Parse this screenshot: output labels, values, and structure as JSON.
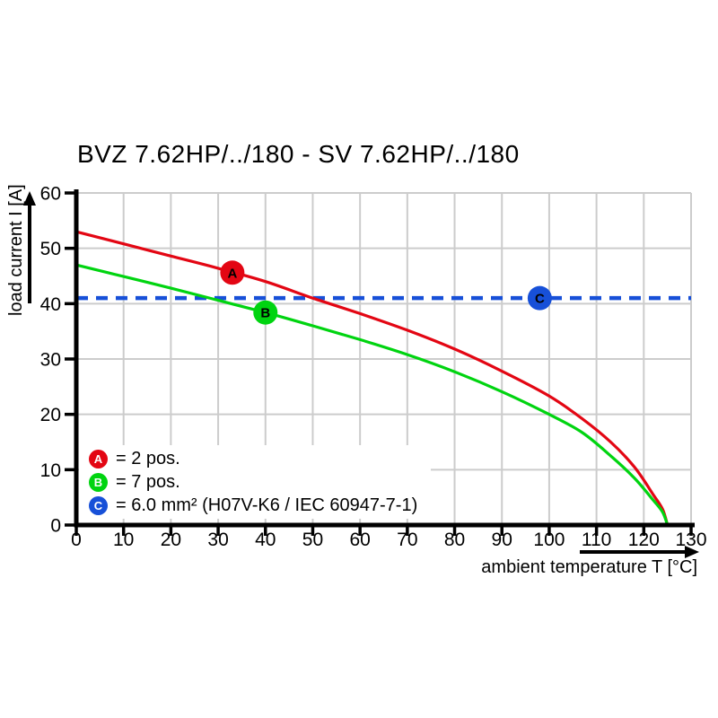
{
  "page": {
    "background": "#ffffff"
  },
  "chart_data": {
    "type": "line",
    "title": "BVZ 7.62HP/../180 - SV 7.62HP/../180",
    "xlabel": "ambient temperature T [°C]",
    "ylabel": "load current I [A]",
    "xlim": [
      0,
      130
    ],
    "ylim": [
      0,
      60
    ],
    "xtick_step": 10,
    "ytick_step": 10,
    "grid": true,
    "grid_color": "#cccccc",
    "axis_color": "#000000",
    "legend_position": "bottom-left-inside",
    "series": [
      {
        "name": "A",
        "label": "= 2 pos.",
        "color": "#e30613",
        "style": "solid",
        "points": [
          [
            0,
            53
          ],
          [
            10,
            50.8
          ],
          [
            20,
            48.6
          ],
          [
            30,
            46.4
          ],
          [
            40,
            44
          ],
          [
            50,
            41
          ],
          [
            60,
            38.2
          ],
          [
            70,
            35.2
          ],
          [
            80,
            31.8
          ],
          [
            90,
            27.8
          ],
          [
            100,
            23.3
          ],
          [
            107,
            19.2
          ],
          [
            113,
            15
          ],
          [
            118,
            10.5
          ],
          [
            122,
            5.5
          ],
          [
            124,
            2.8
          ],
          [
            125,
            0
          ]
        ],
        "marker": {
          "t": 33,
          "i": 45.6
        }
      },
      {
        "name": "B",
        "label": "= 7 pos.",
        "color": "#00d410",
        "style": "solid",
        "points": [
          [
            0,
            47
          ],
          [
            10,
            44.9
          ],
          [
            20,
            42.8
          ],
          [
            30,
            40.6
          ],
          [
            40,
            38.4
          ],
          [
            50,
            36
          ],
          [
            60,
            33.5
          ],
          [
            70,
            30.8
          ],
          [
            80,
            27.7
          ],
          [
            90,
            24.1
          ],
          [
            100,
            20
          ],
          [
            107,
            16.7
          ],
          [
            113,
            12.5
          ],
          [
            118,
            8.5
          ],
          [
            122,
            4.5
          ],
          [
            124,
            2.3
          ],
          [
            125,
            0
          ]
        ],
        "marker": {
          "t": 40,
          "i": 38.4
        }
      },
      {
        "name": "C",
        "label": "= 6.0 mm² (H07V-K6 / IEC 60947-7-1)",
        "color": "#1750d8",
        "style": "dashed-horizontal",
        "value": 41,
        "marker": {
          "t": 98,
          "i": 41
        }
      }
    ]
  }
}
